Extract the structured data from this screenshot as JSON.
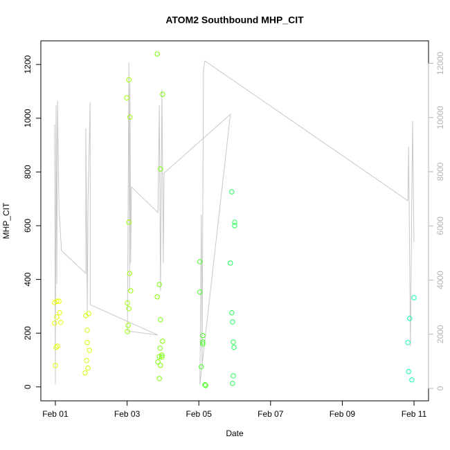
{
  "chart_data": {
    "type": "scatter",
    "title": "ATOM2 Southbound MHP_CIT",
    "x_label": "Date",
    "y_label": "MHP_CIT",
    "xlim": [
      -0.405,
      10.405
    ],
    "xticks": [
      {
        "value": 0,
        "label": "Feb 01"
      },
      {
        "value": 2,
        "label": "Feb 03"
      },
      {
        "value": 4,
        "label": "Feb 05"
      },
      {
        "value": 6,
        "label": "Feb 07"
      },
      {
        "value": 8,
        "label": "Feb 09"
      },
      {
        "value": 10,
        "label": "Feb 11"
      }
    ],
    "ylim": [
      -52,
      1288
    ],
    "yticks": [
      0,
      200,
      400,
      600,
      800,
      1000,
      1200
    ],
    "y2lim": [
      -460,
      12831
    ],
    "y2ticks": [
      0,
      2000,
      4000,
      6000,
      8000,
      10000,
      12000
    ],
    "y2_color": "#b3b3b3",
    "series": [
      {
        "color": "#e6ff00",
        "x": [
          -0.02,
          0.04,
          0.1,
          -0.02,
          0.04,
          0.12,
          0.15,
          0.02,
          0.06,
          0.0
        ],
        "values": [
          314,
          319,
          319,
          237,
          260,
          276,
          240,
          147,
          152,
          80
        ]
      },
      {
        "color": "#ccff00",
        "x": [
          0.85,
          0.93,
          0.89,
          0.89,
          0.95,
          0.87,
          0.91,
          0.83
        ],
        "values": [
          265,
          273,
          211,
          165,
          136,
          98,
          70,
          52
        ]
      },
      {
        "color": "#99ff00",
        "x": [
          2.05,
          1.99,
          2.08,
          2.05,
          2.07,
          2.1,
          2.01,
          2.05,
          2.03,
          2.01
        ],
        "values": [
          1143,
          1076,
          1004,
          613,
          422,
          358,
          312,
          291,
          229,
          206
        ]
      },
      {
        "color": "#77ff00",
        "x": [
          2.84,
          2.99,
          2.93,
          2.9,
          2.84,
          2.93,
          2.99,
          2.92,
          2.97,
          2.9,
          2.97,
          2.86,
          2.93,
          2.9
        ],
        "values": [
          1239,
          1089,
          811,
          381,
          335,
          250,
          170,
          144,
          118,
          113,
          111,
          93,
          80,
          31
        ]
      },
      {
        "color": "#44ff22",
        "x": [
          4.03,
          4.03,
          4.11,
          4.11,
          4.11,
          4.07,
          4.17,
          4.19
        ],
        "values": [
          466,
          353,
          191,
          167,
          160,
          75,
          8,
          5
        ]
      },
      {
        "color": "#22ff55",
        "x": [
          4.92,
          5.0,
          5.0,
          4.88,
          4.92,
          4.94,
          4.96,
          4.98,
          4.96,
          4.94
        ],
        "values": [
          726,
          613,
          600,
          461,
          276,
          242,
          167,
          147,
          41,
          13
        ]
      },
      {
        "color": "#11ffaa",
        "x": [
          10.0,
          9.88,
          9.83,
          9.85,
          9.94
        ],
        "values": [
          332,
          255,
          165,
          57,
          26
        ]
      },
      {
        "type": "line",
        "axis": "y2",
        "color": "#c8c8c8",
        "x": [
          -0.02,
          0.0,
          0.02,
          0.04,
          0.06,
          0.1,
          0.17,
          0.85,
          0.85,
          0.89,
          0.91,
          0.97,
          0.97,
          2.86,
          2.01,
          2.05,
          2.07,
          2.08,
          2.1,
          2.12,
          2.86,
          2.9,
          2.93,
          2.97,
          3.01,
          3.03,
          4.88,
          4.03,
          4.07,
          4.09,
          4.13,
          4.17,
          9.83,
          9.85,
          9.9,
          9.96,
          10.0
        ],
        "values": [
          9740,
          150,
          10450,
          3860,
          10630,
          6670,
          5090,
          4240,
          9610,
          2840,
          6930,
          10580,
          3090,
          1970,
          2120,
          12040,
          3600,
          11270,
          4630,
          7440,
          6490,
          10450,
          3600,
          11020,
          4630,
          7950,
          10120,
          150,
          6420,
          790,
          11780,
          12090,
          6930,
          8920,
          1560,
          9870,
          5390
        ]
      }
    ]
  }
}
